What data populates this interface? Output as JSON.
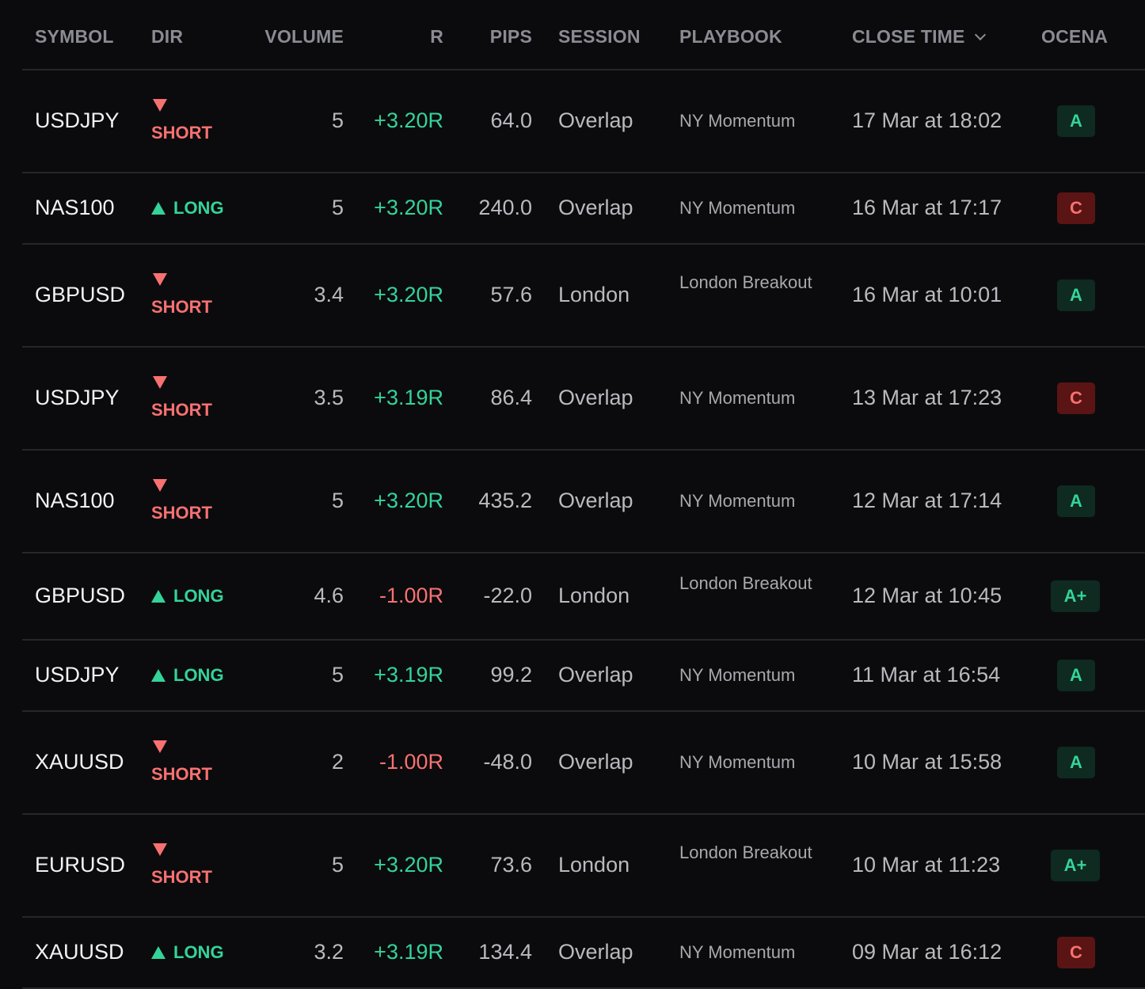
{
  "headers": {
    "symbol": "SYMBOL",
    "dir": "DIR",
    "volume": "VOLUME",
    "r": "R",
    "pips": "PIPS",
    "session": "SESSION",
    "playbook": "PLAYBOOK",
    "close_time": "CLOSE TIME",
    "ocena": "OCENA"
  },
  "colors": {
    "positive": "#34d399",
    "negative": "#f87171",
    "grade_c_bg": "#5a1414",
    "grade_a_bg": "#0f2a20"
  },
  "trades": [
    {
      "symbol": "USDJPY",
      "dir": "SHORT",
      "volume": "5",
      "r": "+3.20R",
      "pips": "64.0",
      "session": "Overlap",
      "playbook": "NY Momentum",
      "close_time": "17 Mar at 18:02",
      "grade": "A"
    },
    {
      "symbol": "NAS100",
      "dir": "LONG",
      "volume": "5",
      "r": "+3.20R",
      "pips": "240.0",
      "session": "Overlap",
      "playbook": "NY Momentum",
      "close_time": "16 Mar at 17:17",
      "grade": "C"
    },
    {
      "symbol": "GBPUSD",
      "dir": "SHORT",
      "volume": "3.4",
      "r": "+3.20R",
      "pips": "57.6",
      "session": "London",
      "playbook": "London Breakout",
      "close_time": "16 Mar at 10:01",
      "grade": "A"
    },
    {
      "symbol": "USDJPY",
      "dir": "SHORT",
      "volume": "3.5",
      "r": "+3.19R",
      "pips": "86.4",
      "session": "Overlap",
      "playbook": "NY Momentum",
      "close_time": "13 Mar at 17:23",
      "grade": "C"
    },
    {
      "symbol": "NAS100",
      "dir": "SHORT",
      "volume": "5",
      "r": "+3.20R",
      "pips": "435.2",
      "session": "Overlap",
      "playbook": "NY Momentum",
      "close_time": "12 Mar at 17:14",
      "grade": "A"
    },
    {
      "symbol": "GBPUSD",
      "dir": "LONG",
      "volume": "4.6",
      "r": "-1.00R",
      "pips": "-22.0",
      "session": "London",
      "playbook": "London Breakout",
      "close_time": "12 Mar at 10:45",
      "grade": "A+"
    },
    {
      "symbol": "USDJPY",
      "dir": "LONG",
      "volume": "5",
      "r": "+3.19R",
      "pips": "99.2",
      "session": "Overlap",
      "playbook": "NY Momentum",
      "close_time": "11 Mar at 16:54",
      "grade": "A"
    },
    {
      "symbol": "XAUUSD",
      "dir": "SHORT",
      "volume": "2",
      "r": "-1.00R",
      "pips": "-48.0",
      "session": "Overlap",
      "playbook": "NY Momentum",
      "close_time": "10 Mar at 15:58",
      "grade": "A"
    },
    {
      "symbol": "EURUSD",
      "dir": "SHORT",
      "volume": "5",
      "r": "+3.20R",
      "pips": "73.6",
      "session": "London",
      "playbook": "London Breakout",
      "close_time": "10 Mar at 11:23",
      "grade": "A+"
    },
    {
      "symbol": "XAUUSD",
      "dir": "LONG",
      "volume": "3.2",
      "r": "+3.19R",
      "pips": "134.4",
      "session": "Overlap",
      "playbook": "NY Momentum",
      "close_time": "09 Mar at 16:12",
      "grade": "C"
    }
  ]
}
